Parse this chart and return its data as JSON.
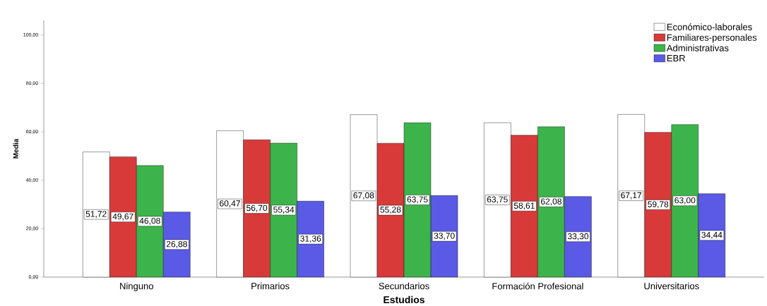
{
  "chart_data": {
    "type": "bar",
    "xlabel": "Estudios",
    "ylabel": "Media",
    "categories": [
      "Ninguno",
      "Primarios",
      "Secundarios",
      "Formación Profesional",
      "Universitarios"
    ],
    "series": [
      {
        "name": "Económico-laborales",
        "color": "#ffffff",
        "values": [
          51.72,
          60.47,
          67.08,
          63.75,
          67.17
        ],
        "value_labels": [
          "51,72",
          "60,47",
          "67,08",
          "63,75",
          "67,17"
        ]
      },
      {
        "name": "Familiares-personales",
        "color": "#d83a3a",
        "values": [
          49.67,
          56.7,
          55.28,
          58.61,
          59.78
        ],
        "value_labels": [
          "49,67",
          "56,70",
          "55,28",
          "58,61",
          "59,78"
        ]
      },
      {
        "name": "Administrativas",
        "color": "#3cb44b",
        "values": [
          46.08,
          55.34,
          63.75,
          62.08,
          63.0
        ],
        "value_labels": [
          "46,08",
          "55,34",
          "63,75",
          "62,08",
          "63,00"
        ]
      },
      {
        "name": "EBR",
        "color": "#5a5ae6",
        "values": [
          26.88,
          31.36,
          33.7,
          33.3,
          34.44
        ],
        "value_labels": [
          "26,88",
          "31,36",
          "33,70",
          "33,30",
          "34,44"
        ]
      }
    ],
    "ylim": [
      0,
      106
    ],
    "yticks": [
      {
        "value": 0,
        "label": "0,00"
      },
      {
        "value": 20,
        "label": "20,00"
      },
      {
        "value": 40,
        "label": "40,00"
      },
      {
        "value": 60,
        "label": "60,00"
      },
      {
        "value": 80,
        "label": "80,00"
      },
      {
        "value": 100,
        "label": "100,00"
      }
    ],
    "legend": "top right",
    "grid": false
  }
}
